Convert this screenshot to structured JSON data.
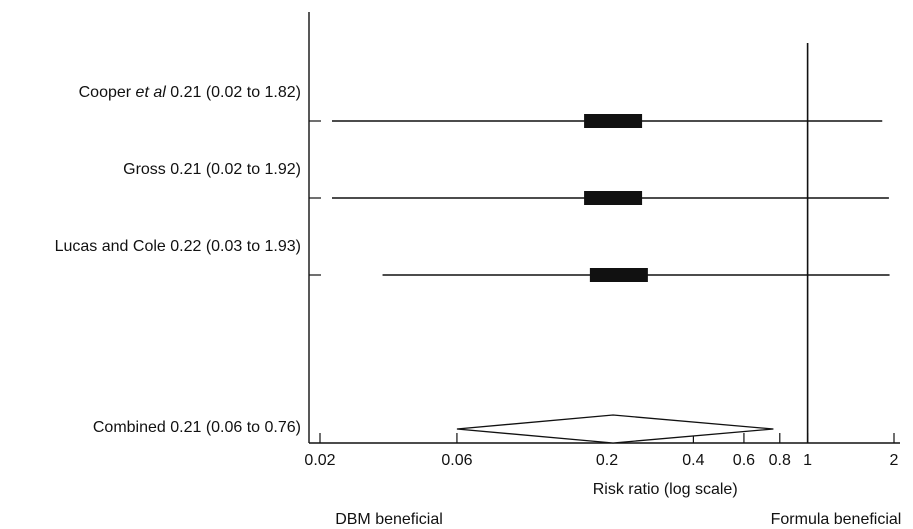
{
  "chart_data": {
    "type": "forest",
    "xlabel": "Risk ratio (log scale)",
    "x_scale": "log",
    "xlim": [
      0.02,
      2
    ],
    "x_ticks": [
      0.02,
      0.06,
      0.2,
      0.4,
      0.6,
      0.8,
      1,
      2
    ],
    "x_tick_labels": [
      "0.02",
      "0.06",
      "0.2",
      "0.4",
      "0.6",
      "0.8",
      "1",
      "2"
    ],
    "reference_line": 1,
    "studies": [
      {
        "name_prefix": "Cooper ",
        "name_italic": "et al",
        "stats": "0.21 (0.02 to 1.82)",
        "estimate": 0.21,
        "lower": 0.02,
        "upper": 1.82
      },
      {
        "name_prefix": "Gross",
        "name_italic": "",
        "stats": "0.21 (0.02 to 1.92)",
        "estimate": 0.21,
        "lower": 0.02,
        "upper": 1.92
      },
      {
        "name_prefix": "Lucas and Cole",
        "name_italic": "",
        "stats": "0.22 (0.03 to 1.93)",
        "estimate": 0.22,
        "lower": 0.03,
        "upper": 1.93
      }
    ],
    "combined": {
      "name": "Combined",
      "stats": "0.21 (0.06 to 0.76)",
      "estimate": 0.21,
      "lower": 0.06,
      "upper": 0.76
    },
    "footer_left": "DBM beneficial",
    "footer_right": "Formula beneficial"
  }
}
